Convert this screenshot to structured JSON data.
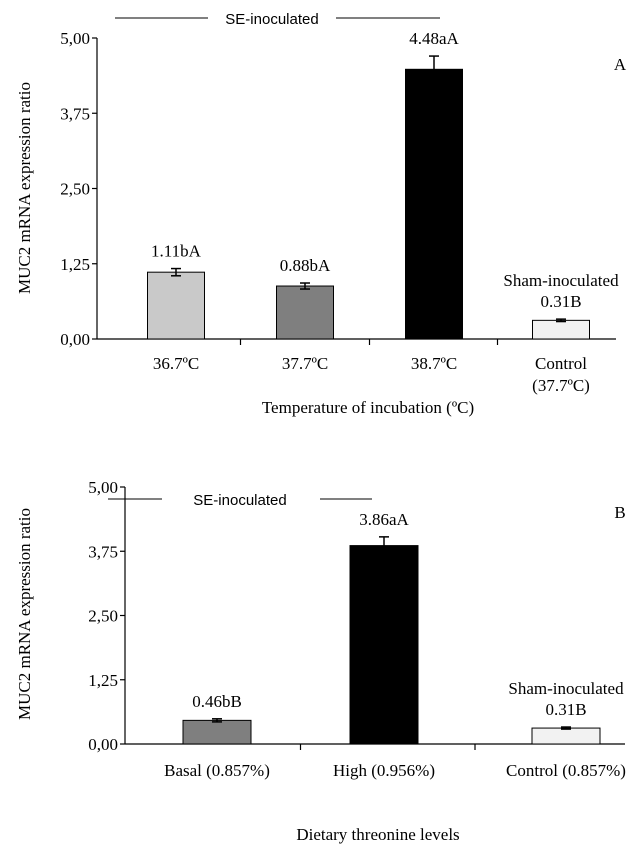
{
  "chart_data": [
    {
      "type": "bar",
      "panel_label": "A",
      "categories": [
        [
          "36.7ºC"
        ],
        [
          "37.7ºC"
        ],
        [
          "38.7ºC"
        ],
        [
          "Control",
          "(37.7ºC)"
        ]
      ],
      "values": [
        1.11,
        0.88,
        4.48,
        0.31
      ],
      "errors": [
        0.06,
        0.05,
        0.22,
        0.02
      ],
      "bar_labels": [
        [
          "1.11bA"
        ],
        [
          "0.88bA"
        ],
        [
          "4.48aA"
        ],
        [
          "Sham-inoculated",
          "0.31B"
        ]
      ],
      "bar_colors": [
        "#c9c9c9",
        "#7f7f7f",
        "#000000",
        "#f2f2f2"
      ],
      "xlabel": "Temperature of incubation (ºC)",
      "ylabel": "MUC2 mRNA expression ratio",
      "ylim": [
        0,
        5
      ],
      "yticks": [
        0,
        1.25,
        2.5,
        3.75,
        5
      ],
      "ytick_labels": [
        "0,00",
        "1,25",
        "2,50",
        "3,75",
        "5,00"
      ],
      "bracket_label": "SE-inoculated",
      "grid": false
    },
    {
      "type": "bar",
      "panel_label": "B",
      "categories": [
        [
          "Basal (0.857%)"
        ],
        [
          "High (0.956%)"
        ],
        [
          "Control (0.857%)"
        ]
      ],
      "values": [
        0.46,
        3.86,
        0.31
      ],
      "errors": [
        0.03,
        0.17,
        0.02
      ],
      "bar_labels": [
        [
          "0.46bB"
        ],
        [
          "3.86aA"
        ],
        [
          "Sham-inoculated",
          "0.31B"
        ]
      ],
      "bar_colors": [
        "#7f7f7f",
        "#000000",
        "#f2f2f2"
      ],
      "xlabel": "Dietary threonine levels",
      "ylabel": "MUC2 mRNA expression ratio",
      "ylim": [
        0,
        5
      ],
      "yticks": [
        0,
        1.25,
        2.5,
        3.75,
        5
      ],
      "ytick_labels": [
        "0,00",
        "1,25",
        "2,50",
        "3,75",
        "5,00"
      ],
      "bracket_label": "SE-inoculated",
      "grid": false
    }
  ]
}
